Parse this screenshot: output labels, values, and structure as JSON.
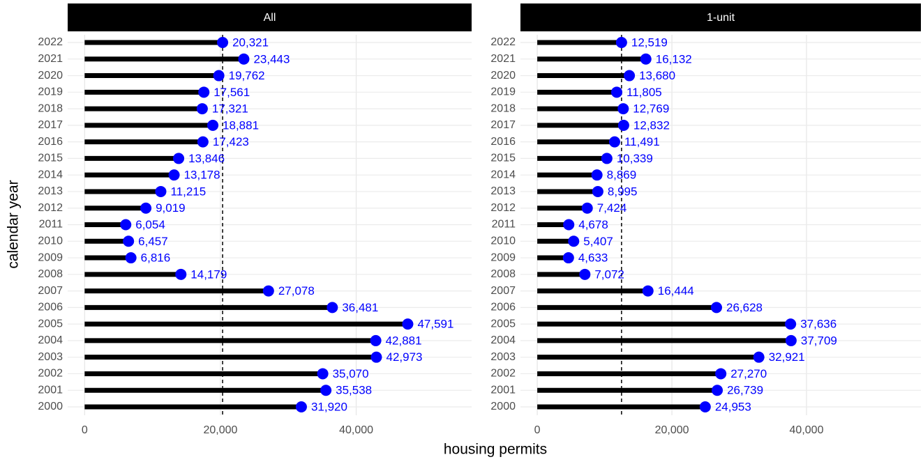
{
  "xlabel": "housing permits",
  "ylabel": "calendar year",
  "chart_data": [
    {
      "type": "lollipop",
      "title": "All",
      "categories": [
        "2000",
        "2001",
        "2002",
        "2003",
        "2004",
        "2005",
        "2006",
        "2007",
        "2008",
        "2009",
        "2010",
        "2011",
        "2012",
        "2013",
        "2014",
        "2015",
        "2016",
        "2017",
        "2018",
        "2019",
        "2020",
        "2021",
        "2022"
      ],
      "values": [
        31920,
        35538,
        35070,
        42973,
        42881,
        47591,
        36481,
        27078,
        14179,
        6816,
        6457,
        6054,
        9019,
        11215,
        13178,
        13846,
        17423,
        18881,
        17321,
        17561,
        19762,
        23443,
        20321
      ],
      "value_labels": [
        "31,920",
        "35,538",
        "35,070",
        "42,973",
        "42,881",
        "47,591",
        "36,481",
        "27,078",
        "14,179",
        "6,816",
        "6,457",
        "6,054",
        "9,019",
        "11,215",
        "13,178",
        "13,846",
        "17,423",
        "18,881",
        "17,321",
        "17,561",
        "19,762",
        "23,443",
        "20,321"
      ],
      "color": "#0000ff",
      "stem_color": "#000000",
      "xlim": [
        -2500,
        57000
      ],
      "xticks": [
        0,
        {
          "value": 20000,
          "label": "20,000"
        },
        {
          "value": 40000,
          "label": "40,000"
        }
      ],
      "grid": true
    },
    {
      "type": "lollipop",
      "title": "1-unit",
      "categories": [
        "2000",
        "2001",
        "2002",
        "2003",
        "2004",
        "2005",
        "2006",
        "2007",
        "2008",
        "2009",
        "2010",
        "2011",
        "2012",
        "2013",
        "2014",
        "2015",
        "2016",
        "2017",
        "2018",
        "2019",
        "2020",
        "2021",
        "2022"
      ],
      "values": [
        24953,
        26739,
        27270,
        32921,
        37709,
        37636,
        26628,
        16444,
        7072,
        4633,
        5407,
        4678,
        7424,
        8995,
        8869,
        10339,
        11491,
        12832,
        12769,
        11805,
        13680,
        16132,
        12519
      ],
      "value_labels": [
        "24,953",
        "26,739",
        "27,270",
        "32,921",
        "37,709",
        "37,636",
        "26,628",
        "16,444",
        "7,072",
        "4,633",
        "5,407",
        "4,678",
        "7,424",
        "8,995",
        "8,869",
        "10,339",
        "11,491",
        "12,832",
        "12,769",
        "11,805",
        "13,680",
        "16,132",
        "12,519"
      ],
      "color": "#0000ff",
      "stem_color": "#000000",
      "xlim": [
        -2500,
        57000
      ],
      "xticks": [
        0,
        {
          "value": 20000,
          "label": "20,000"
        },
        {
          "value": 40000,
          "label": "40,000"
        }
      ],
      "grid": true
    }
  ]
}
